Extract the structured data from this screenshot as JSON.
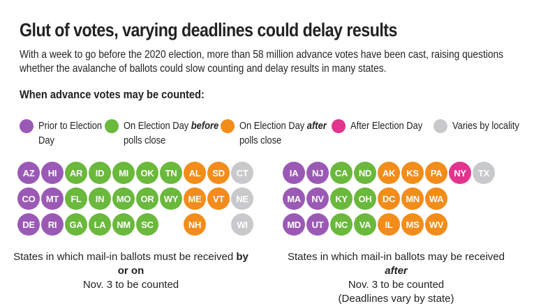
{
  "title": "Glut of votes, varying deadlines could delay results",
  "subtitle": "With a week to go before the 2020 election, more than 58 million advance votes have been cast, raising questions whether the avalanche of ballots could slow counting and delay results in many states.",
  "section_label": "When advance votes may be counted:",
  "colors": {
    "prior": "#9b59b6",
    "before": "#6ab83c",
    "after": "#f28c1a",
    "after_day": "#e0348f",
    "varies": "#c8c9cb"
  },
  "legend": [
    {
      "key": "prior",
      "line1": "Prior to Election",
      "line2": "Day"
    },
    {
      "key": "before",
      "line1_pre": "On Election Day ",
      "line1_em": "before",
      "line2": "polls close"
    },
    {
      "key": "after",
      "line1_pre": "On Election Day ",
      "line1_em": "after",
      "line2": "polls close"
    },
    {
      "key": "after_day",
      "line1": "After Election Day",
      "line2": ""
    },
    {
      "key": "varies",
      "line1": "Varies by locality",
      "line2": ""
    }
  ],
  "chart_data": [
    {
      "type": "table",
      "title": "States in which mail-in ballots must be received by or on Nov. 3 to be counted",
      "rows": [
        [
          {
            "state": "AZ",
            "cat": "prior"
          },
          {
            "state": "HI",
            "cat": "prior"
          },
          {
            "state": "AR",
            "cat": "before"
          },
          {
            "state": "ID",
            "cat": "before"
          },
          {
            "state": "MI",
            "cat": "before"
          },
          {
            "state": "OK",
            "cat": "before"
          },
          {
            "state": "TN",
            "cat": "before"
          },
          {
            "state": "AL",
            "cat": "after"
          },
          {
            "state": "SD",
            "cat": "after"
          },
          {
            "state": "CT",
            "cat": "varies"
          }
        ],
        [
          {
            "state": "CO",
            "cat": "prior"
          },
          {
            "state": "MT",
            "cat": "prior"
          },
          {
            "state": "FL",
            "cat": "before"
          },
          {
            "state": "IN",
            "cat": "before"
          },
          {
            "state": "MO",
            "cat": "before"
          },
          {
            "state": "OR",
            "cat": "before"
          },
          {
            "state": "WY",
            "cat": "before"
          },
          {
            "state": "ME",
            "cat": "after"
          },
          {
            "state": "VT",
            "cat": "after"
          },
          {
            "state": "NE",
            "cat": "varies"
          }
        ],
        [
          {
            "state": "DE",
            "cat": "prior"
          },
          {
            "state": "RI",
            "cat": "prior"
          },
          {
            "state": "GA",
            "cat": "before"
          },
          {
            "state": "LA",
            "cat": "before"
          },
          {
            "state": "NM",
            "cat": "before"
          },
          {
            "state": "SC",
            "cat": "before"
          },
          null,
          {
            "state": "NH",
            "cat": "after"
          },
          null,
          {
            "state": "WI",
            "cat": "varies"
          }
        ]
      ],
      "caption_pre": "States in which mail-in ballots must be received ",
      "caption_bold": "by or on",
      "caption_line2": "Nov. 3 to be counted",
      "caption_line3": ""
    },
    {
      "type": "table",
      "title": "States in which mail-in ballots may be received after Nov. 3 to be counted",
      "rows": [
        [
          {
            "state": "IA",
            "cat": "prior"
          },
          {
            "state": "NJ",
            "cat": "prior"
          },
          {
            "state": "CA",
            "cat": "before"
          },
          {
            "state": "ND",
            "cat": "before"
          },
          {
            "state": "AK",
            "cat": "after"
          },
          {
            "state": "KS",
            "cat": "after"
          },
          {
            "state": "PA",
            "cat": "after"
          },
          {
            "state": "NY",
            "cat": "after_day"
          },
          {
            "state": "TX",
            "cat": "varies"
          }
        ],
        [
          {
            "state": "MA",
            "cat": "prior"
          },
          {
            "state": "NV",
            "cat": "prior"
          },
          {
            "state": "KY",
            "cat": "before"
          },
          {
            "state": "OH",
            "cat": "before"
          },
          {
            "state": "DC",
            "cat": "after"
          },
          {
            "state": "MN",
            "cat": "after"
          },
          {
            "state": "WA",
            "cat": "after"
          },
          null,
          null
        ],
        [
          {
            "state": "MD",
            "cat": "prior"
          },
          {
            "state": "UT",
            "cat": "prior"
          },
          {
            "state": "NC",
            "cat": "before"
          },
          {
            "state": "VA",
            "cat": "before"
          },
          {
            "state": "IL",
            "cat": "after"
          },
          {
            "state": "MS",
            "cat": "after"
          },
          {
            "state": "WV",
            "cat": "after"
          },
          null,
          null
        ]
      ],
      "caption_pre": "States in which mail-in ballots may be received ",
      "caption_bold": "after",
      "caption_line2": "Nov. 3 to be counted",
      "caption_line3": "(Deadlines vary by state)"
    }
  ]
}
